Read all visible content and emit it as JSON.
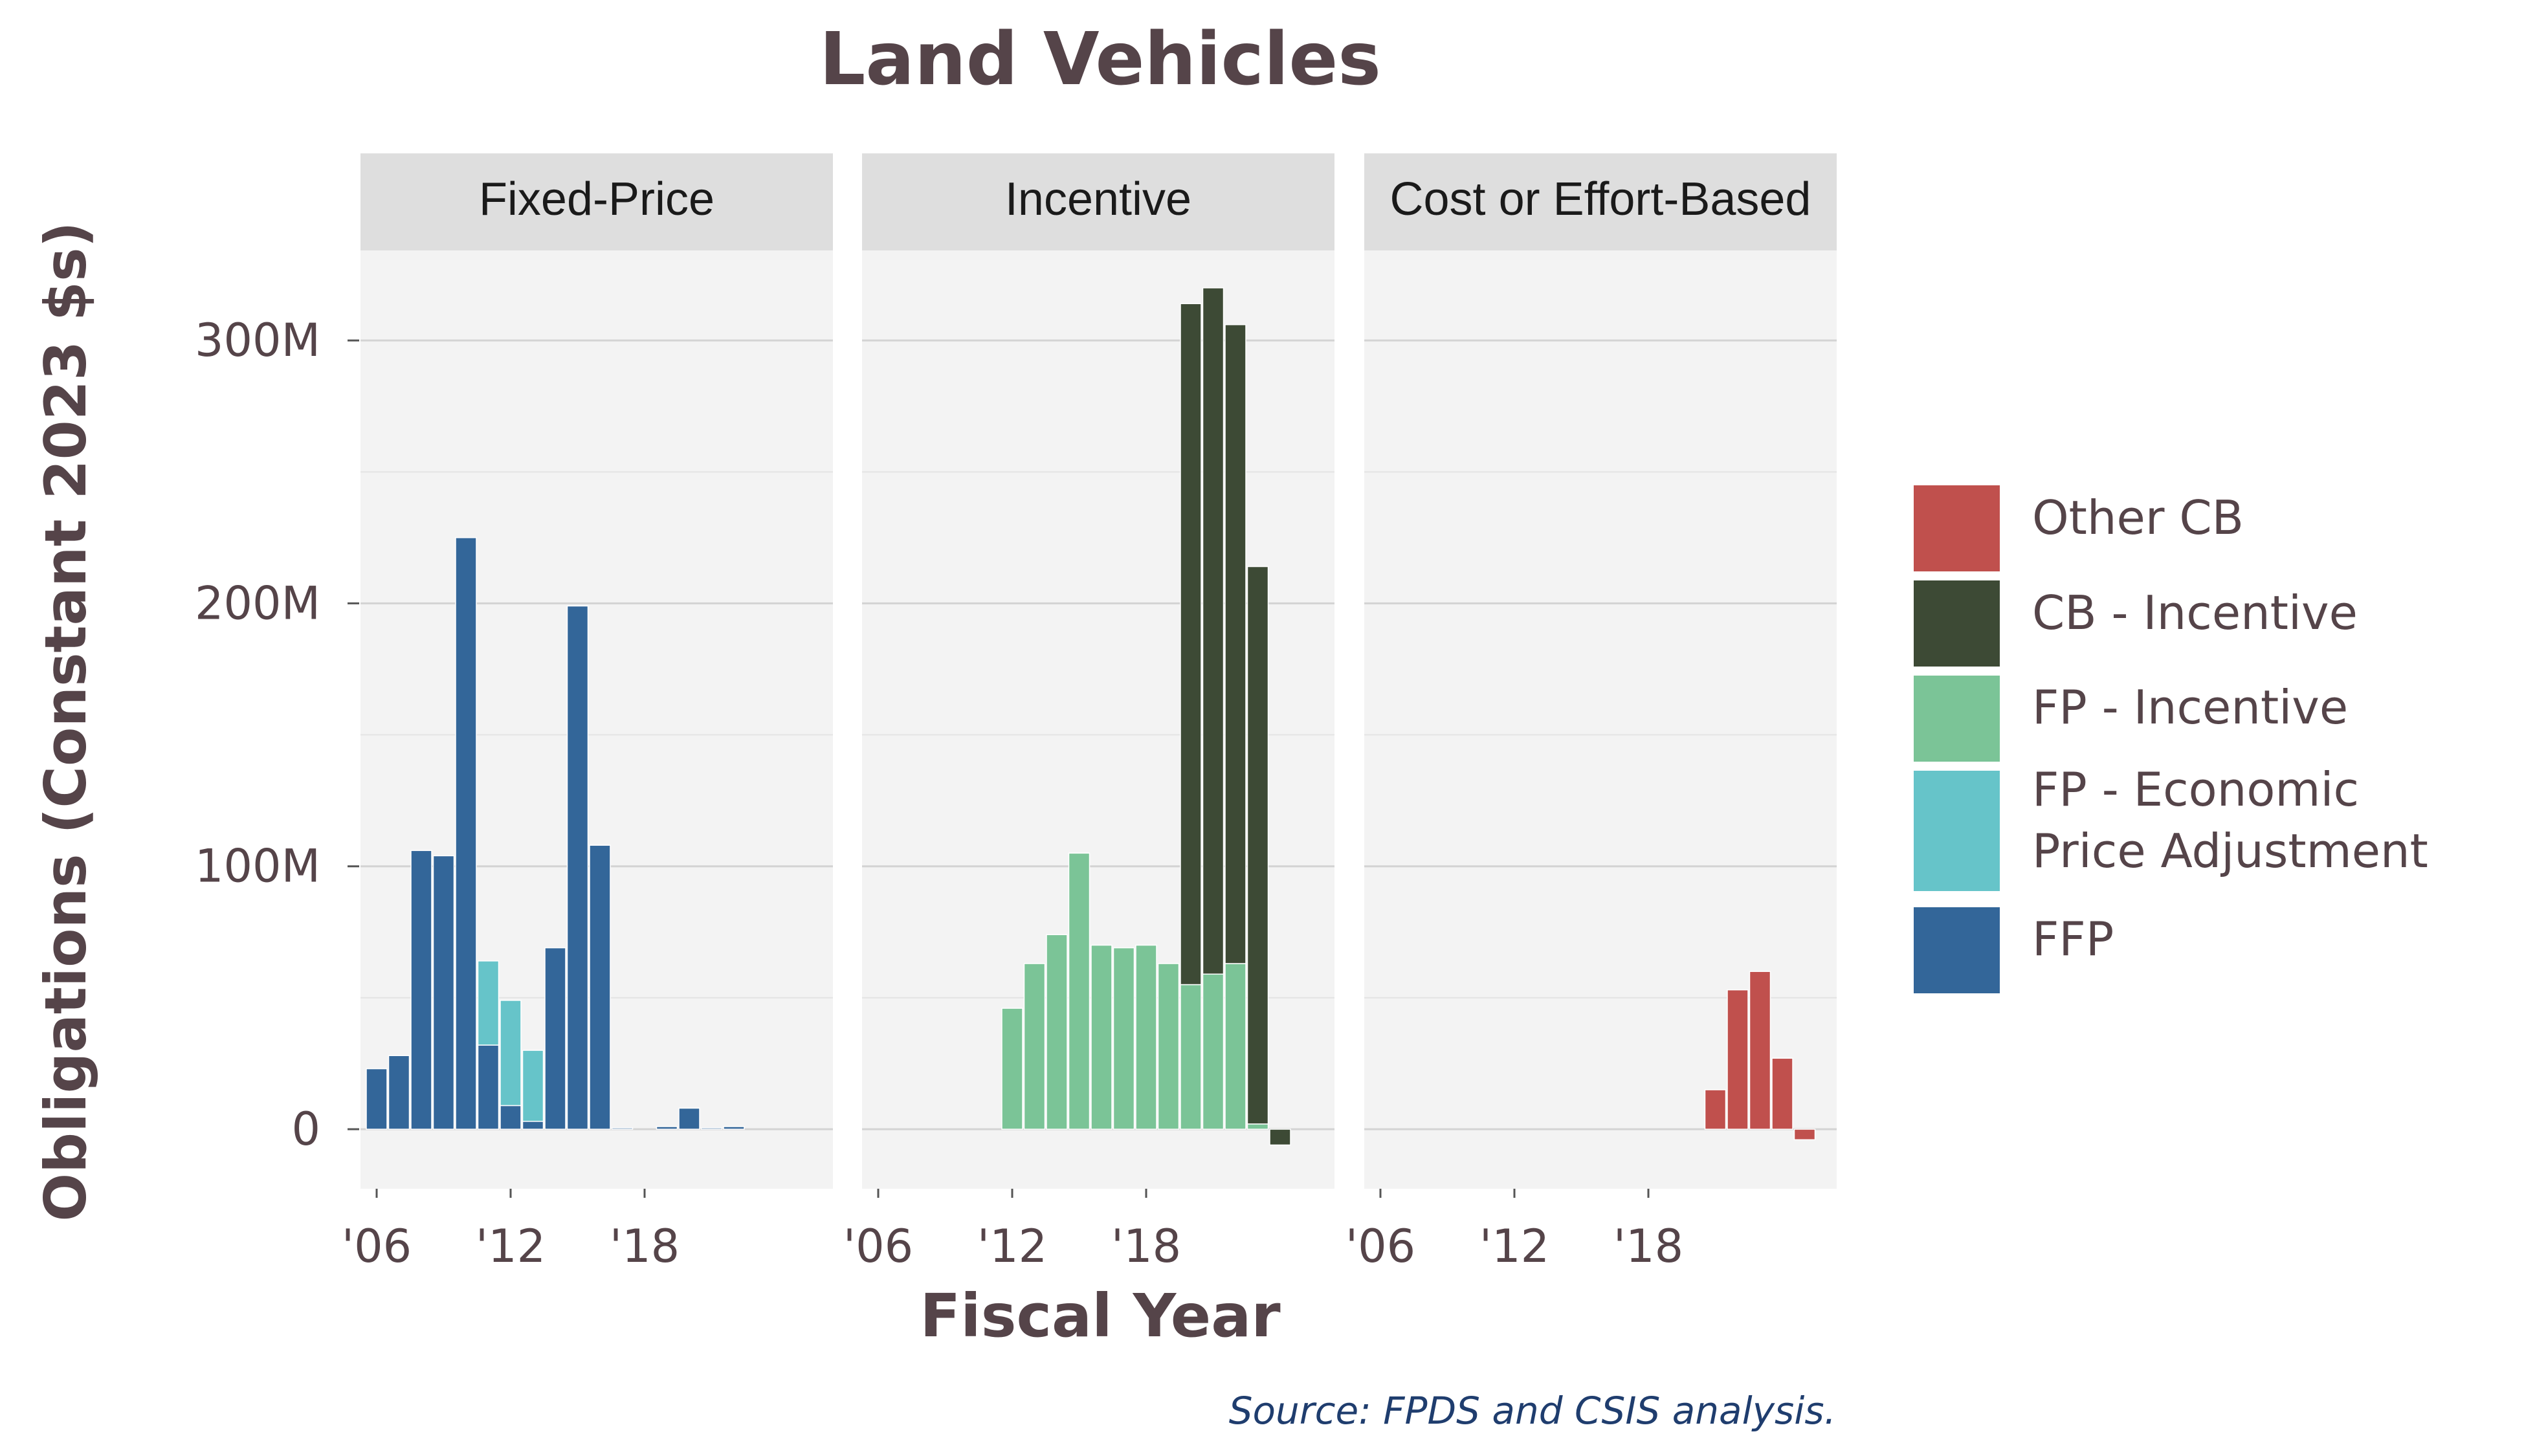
{
  "chart_data": {
    "type": "bar",
    "stacked": true,
    "title": "Land Vehicles",
    "xlabel": "Fiscal Year",
    "ylabel": "Obligations (Constant 2023 $s)",
    "source": "Source: FPDS and CSIS analysis.",
    "ylim": [
      -25,
      330
    ],
    "y_unit": "millions",
    "yticks": [
      {
        "value": 0,
        "label": "0"
      },
      {
        "value": 100,
        "label": "100M"
      },
      {
        "value": 200,
        "label": "200M"
      },
      {
        "value": 300,
        "label": "300M"
      }
    ],
    "xlim": [
      2005,
      2027
    ],
    "xticks": [
      {
        "value": 2006,
        "label": "'06"
      },
      {
        "value": 2012,
        "label": "'12"
      },
      {
        "value": 2018,
        "label": "'18"
      }
    ],
    "grid": true,
    "legend_position": "right",
    "legend": [
      {
        "key": "other_cb",
        "name": "Other CB",
        "color": "#c0504d"
      },
      {
        "key": "cb_incentive",
        "name": "CB - Incentive",
        "color": "#3d4a35"
      },
      {
        "key": "fp_incentive",
        "name": "FP - Incentive",
        "color": "#7bc497"
      },
      {
        "key": "fp_epa",
        "name": "FP - Economic\nPrice Adjustment",
        "color": "#66c4c9"
      },
      {
        "key": "ffp",
        "name": "FFP",
        "color": "#336699"
      }
    ],
    "panels": [
      {
        "name": "Fixed-Price",
        "series": [
          {
            "key": "ffp",
            "x": [
              2006,
              2007,
              2008,
              2009,
              2010,
              2011,
              2012,
              2013,
              2014,
              2015,
              2016,
              2017,
              2019,
              2020,
              2021,
              2022
            ],
            "values": [
              23,
              28,
              106,
              104,
              225,
              32,
              9,
              3,
              69,
              199,
              108,
              0.5,
              1,
              8,
              0.5,
              1
            ]
          },
          {
            "key": "fp_epa",
            "x": [
              2011,
              2012,
              2013
            ],
            "values": [
              32,
              40,
              27
            ]
          }
        ]
      },
      {
        "name": "Incentive",
        "series": [
          {
            "key": "fp_incentive",
            "x": [
              2012,
              2013,
              2014,
              2015,
              2016,
              2017,
              2018,
              2019,
              2020,
              2021,
              2022,
              2023
            ],
            "values": [
              46,
              63,
              74,
              105,
              70,
              69,
              70,
              63,
              55,
              59,
              63,
              2
            ]
          },
          {
            "key": "cb_incentive",
            "x": [
              2020,
              2021,
              2022,
              2023,
              2024
            ],
            "values": [
              259,
              261,
              243,
              212,
              -6
            ]
          }
        ]
      },
      {
        "name": "Cost or Effort-Based",
        "series": [
          {
            "key": "other_cb",
            "x": [
              2021,
              2022,
              2023,
              2024,
              2025
            ],
            "values": [
              15,
              53,
              60,
              27,
              -4
            ]
          }
        ]
      }
    ]
  }
}
